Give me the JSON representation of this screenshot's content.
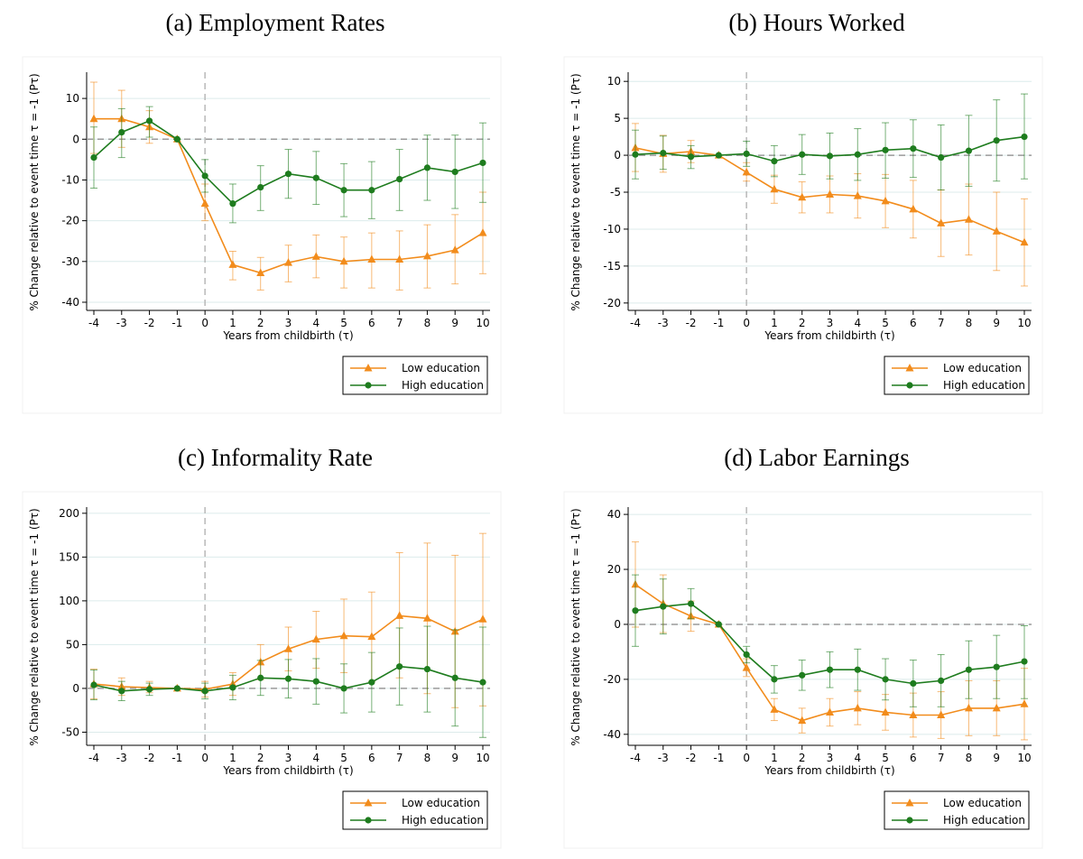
{
  "colors": {
    "low": "#F28C1C",
    "high": "#1E7C1E",
    "grid": "#DCEBEB",
    "zero": "#9A9A9A"
  },
  "chart_data": [
    {
      "type": "line",
      "title": "(a) Employment Rates",
      "xlabel": "Years from childbirth (τ)",
      "ylabel": "% Change relative to event time τ = -1 (Pτ)",
      "x": [
        -4,
        -3,
        -2,
        -1,
        0,
        1,
        2,
        3,
        4,
        5,
        6,
        7,
        8,
        9,
        10
      ],
      "ylim": [
        -42,
        16
      ],
      "yticks": [
        10,
        0,
        -10,
        -20,
        -30,
        -40
      ],
      "grid": true,
      "legend": "bottom-right",
      "series": [
        {
          "name": "Low education",
          "marker": "triangle",
          "values": [
            5,
            5,
            3,
            0,
            -15.8,
            -30.8,
            -32.8,
            -30.3,
            -28.8,
            -30,
            -29.5,
            -29.5,
            -28.7,
            -27.2,
            -23
          ],
          "ci_low": [
            -3.5,
            -2,
            -1,
            0,
            -20,
            -34.5,
            -37,
            -35,
            -34,
            -36.5,
            -36.5,
            -37,
            -36.5,
            -35.5,
            -33
          ],
          "ci_high": [
            14,
            12,
            7,
            0,
            -11,
            -27.5,
            -29,
            -26,
            -23.5,
            -24,
            -23,
            -22.5,
            -21,
            -18.5,
            -13
          ]
        },
        {
          "name": "High education",
          "marker": "circle",
          "values": [
            -4.5,
            1.7,
            4.5,
            0,
            -9,
            -15.8,
            -11.8,
            -8.5,
            -9.5,
            -12.5,
            -12.5,
            -9.8,
            -7,
            -8,
            -5.8
          ],
          "ci_low": [
            -12,
            -4.5,
            0.5,
            0,
            -13,
            -20.5,
            -17.5,
            -14.5,
            -16,
            -19,
            -19.5,
            -17.5,
            -15,
            -17,
            -15.5
          ],
          "ci_high": [
            3,
            7.5,
            8,
            0,
            -5,
            -11,
            -6.5,
            -2.5,
            -3,
            -6,
            -5.5,
            -2.5,
            1,
            1,
            4
          ]
        }
      ]
    },
    {
      "type": "line",
      "title": "(b) Hours Worked",
      "xlabel": "Years from childbirth (τ)",
      "ylabel": "% Change relative to event time τ = -1 (Pτ)",
      "x": [
        -4,
        -3,
        -2,
        -1,
        0,
        1,
        2,
        3,
        4,
        5,
        6,
        7,
        8,
        9,
        10
      ],
      "ylim": [
        -21,
        11
      ],
      "yticks": [
        10,
        5,
        0,
        -5,
        -10,
        -15,
        -20
      ],
      "grid": true,
      "legend": "bottom-right",
      "series": [
        {
          "name": "Low education",
          "marker": "triangle",
          "values": [
            1,
            0.2,
            0.5,
            0,
            -2.3,
            -4.6,
            -5.7,
            -5.3,
            -5.5,
            -6.2,
            -7.3,
            -9.2,
            -8.7,
            -10.3,
            -11.8
          ],
          "ci_low": [
            -2.2,
            -2.3,
            -1,
            0,
            -3.5,
            -6.5,
            -7.8,
            -7.8,
            -8.5,
            -9.8,
            -11.2,
            -13.7,
            -13.5,
            -15.6,
            -17.7
          ],
          "ci_high": [
            4.3,
            2.7,
            2,
            0,
            -1,
            -2.7,
            -3.6,
            -2.8,
            -2.5,
            -2.6,
            -3.4,
            -4.7,
            -3.9,
            -5,
            -5.9
          ]
        },
        {
          "name": "High education",
          "marker": "circle",
          "values": [
            0.1,
            0.3,
            -0.2,
            0,
            0.2,
            -0.8,
            0.1,
            -0.1,
            0.1,
            0.7,
            0.9,
            -0.3,
            0.6,
            2,
            2.5
          ],
          "ci_low": [
            -3.2,
            -1.9,
            -1.8,
            0,
            -1.5,
            -2.9,
            -2.6,
            -3.2,
            -3.4,
            -3.1,
            -3,
            -4.7,
            -4.2,
            -3.5,
            -3.2
          ],
          "ci_high": [
            3.4,
            2.6,
            1.3,
            0,
            1.9,
            1.3,
            2.8,
            3,
            3.6,
            4.4,
            4.8,
            4.1,
            5.4,
            7.5,
            8.3
          ]
        }
      ]
    },
    {
      "type": "line",
      "title": "(c) Informality Rate",
      "xlabel": "Years from childbirth (τ)",
      "ylabel": "% Change relative to event time τ = -1 (Pτ)",
      "x": [
        -4,
        -3,
        -2,
        -1,
        0,
        1,
        2,
        3,
        4,
        5,
        6,
        7,
        8,
        9,
        10
      ],
      "ylim": [
        -65,
        205
      ],
      "yticks": [
        200,
        150,
        100,
        50,
        0,
        -50
      ],
      "grid": true,
      "legend": "bottom-right",
      "series": [
        {
          "name": "Low education",
          "marker": "triangle",
          "values": [
            5,
            2,
            1,
            0,
            -1,
            5,
            30,
            45,
            56,
            60,
            59,
            83,
            80,
            65,
            79
          ],
          "ci_low": [
            -12,
            -8,
            -5,
            0,
            -10,
            -8,
            10,
            20,
            23,
            18,
            8,
            12,
            -6,
            -22,
            -20
          ],
          "ci_high": [
            22,
            12,
            8,
            0,
            8,
            18,
            50,
            70,
            88,
            102,
            110,
            155,
            166,
            152,
            177
          ]
        },
        {
          "name": "High education",
          "marker": "circle",
          "values": [
            4,
            -3,
            -1,
            0,
            -3,
            1,
            12,
            11,
            8,
            0,
            7,
            25,
            22,
            12,
            7
          ],
          "ci_low": [
            -13,
            -14,
            -8,
            0,
            -12,
            -13,
            -8,
            -11,
            -18,
            -28,
            -27,
            -19,
            -27,
            -43,
            -56
          ],
          "ci_high": [
            21,
            8,
            6,
            0,
            6,
            15,
            32,
            33,
            34,
            28,
            41,
            69,
            71,
            67,
            70
          ]
        }
      ]
    },
    {
      "type": "line",
      "title": "(d) Labor Earnings",
      "xlabel": "Years from childbirth (τ)",
      "ylabel": "% Change relative to event time τ = -1 (Pτ)",
      "x": [
        -4,
        -3,
        -2,
        -1,
        0,
        1,
        2,
        3,
        4,
        5,
        6,
        7,
        8,
        9,
        10
      ],
      "ylim": [
        -44,
        42
      ],
      "yticks": [
        40,
        20,
        0,
        -20,
        -40
      ],
      "grid": true,
      "legend": "bottom-right",
      "series": [
        {
          "name": "Low education",
          "marker": "triangle",
          "values": [
            14.5,
            7.5,
            3,
            0,
            -15.8,
            -31,
            -35,
            -32,
            -30.5,
            -32,
            -33,
            -33,
            -30.5,
            -30.5,
            -29
          ],
          "ci_low": [
            -1,
            -3,
            -2.5,
            0,
            -19,
            -35,
            -39.5,
            -37,
            -36.5,
            -38.5,
            -41,
            -41.5,
            -40.5,
            -40.5,
            -42
          ],
          "ci_high": [
            30,
            18,
            8.5,
            0,
            -12.5,
            -27,
            -30.5,
            -27,
            -24.5,
            -25.5,
            -25,
            -24.5,
            -20.5,
            -20.5,
            -16
          ]
        },
        {
          "name": "High education",
          "marker": "circle",
          "values": [
            5,
            6.5,
            7.5,
            0,
            -11,
            -20,
            -18.5,
            -16.5,
            -16.5,
            -20,
            -21.5,
            -20.5,
            -16.5,
            -15.5,
            -13.5
          ],
          "ci_low": [
            -8,
            -3.5,
            2,
            0,
            -14,
            -25,
            -24,
            -23,
            -24,
            -27.5,
            -30,
            -30,
            -27,
            -27,
            -27
          ],
          "ci_high": [
            18,
            16.5,
            13,
            0,
            -8,
            -15,
            -13,
            -10,
            -9,
            -12.5,
            -13,
            -11,
            -6,
            -4,
            -0.5
          ]
        }
      ]
    }
  ]
}
